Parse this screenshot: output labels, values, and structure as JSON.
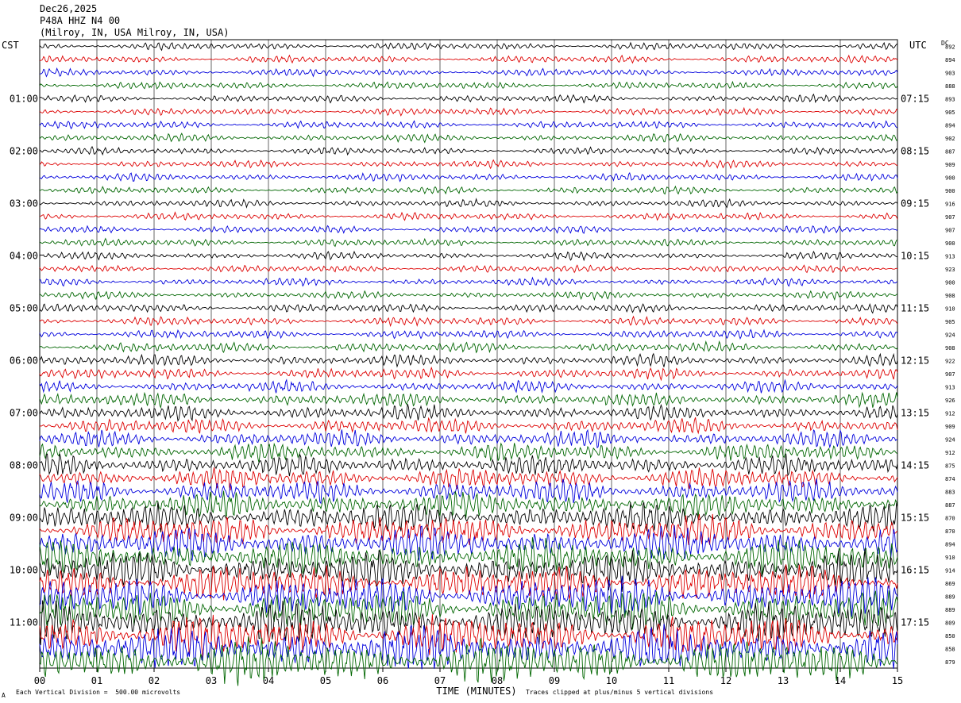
{
  "header": {
    "date": "Dec26,2025",
    "station": "P48A HHZ N4 00",
    "location": "(Milroy, IN, USA Milroy, IN, USA)"
  },
  "left_tz": "CST",
  "right_tz": "UTC",
  "dc_header": "DC",
  "footer": {
    "scale_text": "Each Vertical Division =  500.00 microvolts",
    "clip_text": "Traces clipped at plus/minus 5 vertical divisions",
    "corner_mark": "A"
  },
  "colors": {
    "trace_cycle": [
      "#000000",
      "#dd0000",
      "#0000dd",
      "#006600"
    ],
    "grid": "#000000"
  },
  "chart_data": {
    "type": "line",
    "title": "",
    "xlabel": "TIME (MINUTES)",
    "x_ticks": [
      "00",
      "01",
      "02",
      "03",
      "04",
      "05",
      "06",
      "07",
      "08",
      "09",
      "10",
      "11",
      "12",
      "13",
      "14",
      "15"
    ],
    "xlim": [
      0,
      15
    ],
    "left_hour_labels": [
      "01:00",
      "02:00",
      "03:00",
      "04:00",
      "05:00",
      "06:00",
      "07:00",
      "08:00",
      "09:00",
      "10:00",
      "11:00"
    ],
    "right_hour_labels": [
      "07:15",
      "08:15",
      "09:15",
      "10:15",
      "11:15",
      "12:15",
      "13:15",
      "14:15",
      "15:15",
      "16:15",
      "17:15"
    ],
    "dc_offsets": [
      892,
      894,
      903,
      888,
      893,
      905,
      894,
      902,
      887,
      909,
      900,
      900,
      916,
      907,
      907,
      900,
      913,
      923,
      900,
      908,
      910,
      905,
      924,
      908,
      922,
      907,
      913,
      926,
      912,
      909,
      924,
      912,
      875,
      874,
      883,
      887,
      870,
      870,
      894,
      910,
      914,
      869,
      889,
      889,
      809,
      850,
      858,
      879
    ],
    "trace_amplitude_divisions": [
      0.6,
      0.6,
      0.6,
      0.6,
      0.6,
      0.6,
      0.6,
      0.6,
      0.6,
      0.6,
      0.6,
      0.6,
      0.6,
      0.6,
      0.6,
      0.6,
      0.6,
      0.6,
      0.6,
      0.6,
      0.7,
      0.7,
      0.7,
      0.8,
      0.9,
      0.9,
      0.9,
      1.1,
      1.2,
      1.2,
      1.3,
      1.4,
      1.6,
      1.7,
      1.8,
      2.0,
      2.2,
      2.4,
      2.6,
      2.7,
      2.8,
      2.9,
      3.0,
      3.1,
      3.2,
      3.3,
      3.4,
      3.6
    ],
    "rows_per_hour": 4,
    "minutes_per_row": 15
  }
}
